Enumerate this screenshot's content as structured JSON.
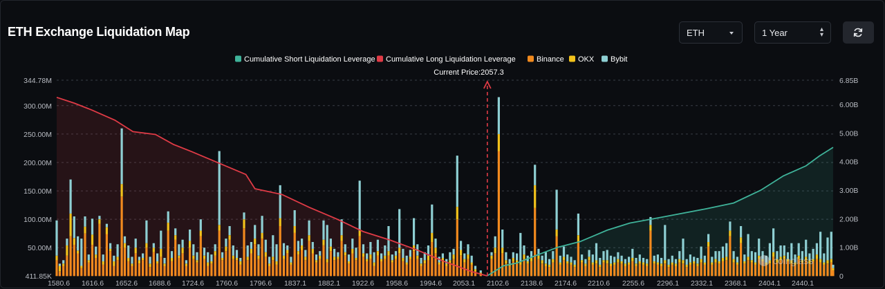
{
  "header": {
    "title": "ETH Exchange Liquidation Map"
  },
  "controls": {
    "symbol": "ETH",
    "range": "1 Year",
    "refresh_icon": "refresh-icon",
    "dropdown_icon": "caret-down-icon",
    "updown_icon": "chevron-updown-icon"
  },
  "colors": {
    "short": "#3fb39a",
    "long": "#e03b46",
    "binance": "#f28a1e",
    "okx": "#f2c21b",
    "bybit": "#8ecfd3",
    "current_price": "#e03b46"
  },
  "watermark": "coinglass",
  "chart_data": {
    "type": "bar",
    "title": "ETH Exchange Liquidation Map",
    "current_price_label": "Current Price:2057.3",
    "current_price": 2057.3,
    "legend": [
      {
        "name": "Cumulative Short Liquidation Leverage",
        "color": "#3fb39a"
      },
      {
        "name": "Cumulative Long Liquidation Leverage",
        "color": "#e03b46"
      },
      {
        "name": "Binance",
        "color": "#f28a1e"
      },
      {
        "name": "OKX",
        "color": "#f2c21b"
      },
      {
        "name": "Bybit",
        "color": "#8ecfd3"
      }
    ],
    "x_ticks": [
      "1580.6",
      "1616.6",
      "1652.6",
      "1688.6",
      "1724.6",
      "1760.6",
      "1796.6",
      "1837.1",
      "1882.1",
      "1922.6",
      "1958.6",
      "1994.6",
      "2053.1",
      "2102.6",
      "2138.6",
      "2174.6",
      "2210.6",
      "2255.6",
      "2296.1",
      "2332.1",
      "2368.1",
      "2404.1",
      "2440.1"
    ],
    "x_range": [
      1580.6,
      2440.1
    ],
    "y_left": {
      "min": 411850,
      "max": 344780000,
      "ticks": [
        "411.85K",
        "50.00M",
        "100.00M",
        "150.00M",
        "200.00M",
        "250.00M",
        "300.00M",
        "344.78M"
      ]
    },
    "y_right": {
      "min": 0,
      "max": 6850000000,
      "ticks": [
        "0",
        "1.00B",
        "2.00B",
        "3.00B",
        "4.00B",
        "5.00B",
        "6.00B",
        "6.85B"
      ]
    },
    "cumulative_long_B": [
      [
        1580.6,
        6.25
      ],
      [
        1600,
        6.05
      ],
      [
        1620,
        5.8
      ],
      [
        1645,
        5.45
      ],
      [
        1665,
        5.05
      ],
      [
        1690,
        4.95
      ],
      [
        1710,
        4.6
      ],
      [
        1730,
        4.35
      ],
      [
        1760,
        3.95
      ],
      [
        1790,
        3.55
      ],
      [
        1800,
        3.05
      ],
      [
        1830,
        2.85
      ],
      [
        1860,
        2.4
      ],
      [
        1890,
        2.0
      ],
      [
        1920,
        1.55
      ],
      [
        1950,
        1.25
      ],
      [
        1980,
        0.9
      ],
      [
        2010,
        0.5
      ],
      [
        2040,
        0.15
      ],
      [
        2057,
        0.0
      ]
    ],
    "cumulative_short_B": [
      [
        2057,
        0.0
      ],
      [
        2075,
        0.35
      ],
      [
        2090,
        0.45
      ],
      [
        2110,
        0.7
      ],
      [
        2135,
        1.0
      ],
      [
        2160,
        1.2
      ],
      [
        2175,
        1.4
      ],
      [
        2190,
        1.6
      ],
      [
        2215,
        1.85
      ],
      [
        2250,
        2.05
      ],
      [
        2300,
        2.35
      ],
      [
        2330,
        2.55
      ],
      [
        2360,
        3.0
      ],
      [
        2385,
        3.5
      ],
      [
        2410,
        3.85
      ],
      [
        2425,
        4.2
      ],
      [
        2440.1,
        4.5
      ]
    ],
    "bars_note": "stacked per price level (USD M): Binance / OKX / Bybit",
    "bars": [
      [
        1580.6,
        28,
        8,
        62
      ],
      [
        1584,
        8,
        10,
        4
      ],
      [
        1588,
        18,
        4,
        6
      ],
      [
        1592,
        36,
        18,
        12
      ],
      [
        1596,
        70,
        40,
        60
      ],
      [
        1600,
        55,
        12,
        38
      ],
      [
        1604,
        40,
        5,
        25
      ],
      [
        1608,
        14,
        4,
        48
      ],
      [
        1612,
        75,
        12,
        18
      ],
      [
        1616,
        24,
        4,
        10
      ],
      [
        1620,
        55,
        18,
        28
      ],
      [
        1624,
        32,
        6,
        14
      ],
      [
        1628,
        92,
        8,
        6
      ],
      [
        1632,
        20,
        6,
        12
      ],
      [
        1636,
        74,
        12,
        6
      ],
      [
        1640,
        44,
        4,
        10
      ],
      [
        1644,
        18,
        8,
        10
      ],
      [
        1648,
        28,
        6,
        22
      ],
      [
        1652.6,
        140,
        22,
        98
      ],
      [
        1656,
        50,
        8,
        12
      ],
      [
        1660,
        26,
        6,
        22
      ],
      [
        1664,
        18,
        4,
        12
      ],
      [
        1668,
        40,
        10,
        16
      ],
      [
        1672,
        22,
        6,
        6
      ],
      [
        1676,
        28,
        4,
        8
      ],
      [
        1680,
        50,
        8,
        40
      ],
      [
        1684,
        16,
        6,
        12
      ],
      [
        1688,
        42,
        8,
        8
      ],
      [
        1692,
        22,
        4,
        14
      ],
      [
        1696,
        34,
        14,
        32
      ],
      [
        1700,
        18,
        4,
        10
      ],
      [
        1704,
        80,
        14,
        20
      ],
      [
        1708,
        26,
        6,
        12
      ],
      [
        1712,
        64,
        8,
        12
      ],
      [
        1716,
        32,
        4,
        20
      ],
      [
        1720,
        40,
        10,
        14
      ],
      [
        1724,
        18,
        4,
        6
      ],
      [
        1728,
        50,
        12,
        20
      ],
      [
        1732,
        30,
        6,
        20
      ],
      [
        1736,
        24,
        4,
        14
      ],
      [
        1740,
        70,
        10,
        20
      ],
      [
        1744,
        30,
        6,
        14
      ],
      [
        1748,
        18,
        6,
        18
      ],
      [
        1752,
        22,
        4,
        12
      ],
      [
        1756,
        36,
        8,
        12
      ],
      [
        1760.6,
        80,
        10,
        130
      ],
      [
        1764,
        28,
        4,
        10
      ],
      [
        1768,
        44,
        8,
        14
      ],
      [
        1772,
        64,
        8,
        16
      ],
      [
        1776,
        30,
        6,
        18
      ],
      [
        1780,
        28,
        4,
        14
      ],
      [
        1784,
        20,
        6,
        6
      ],
      [
        1788,
        84,
        16,
        12
      ],
      [
        1792,
        28,
        6,
        20
      ],
      [
        1796,
        40,
        8,
        12
      ],
      [
        1800,
        56,
        10,
        24
      ],
      [
        1804,
        30,
        6,
        20
      ],
      [
        1808,
        66,
        10,
        30
      ],
      [
        1812,
        34,
        8,
        22
      ],
      [
        1816,
        18,
        4,
        12
      ],
      [
        1820,
        28,
        6,
        38
      ],
      [
        1824,
        20,
        6,
        30
      ],
      [
        1828,
        88,
        14,
        58
      ],
      [
        1832,
        30,
        6,
        22
      ],
      [
        1836,
        40,
        6,
        8
      ],
      [
        1840,
        20,
        4,
        10
      ],
      [
        1844,
        76,
        12,
        28
      ],
      [
        1848,
        38,
        6,
        18
      ],
      [
        1852,
        46,
        8,
        12
      ],
      [
        1856,
        28,
        6,
        12
      ],
      [
        1860,
        62,
        10,
        26
      ],
      [
        1864,
        40,
        8,
        12
      ],
      [
        1868,
        24,
        4,
        10
      ],
      [
        1872,
        30,
        6,
        8
      ],
      [
        1876,
        54,
        10,
        34
      ],
      [
        1880,
        24,
        6,
        60
      ],
      [
        1884,
        44,
        8,
        14
      ],
      [
        1888,
        28,
        6,
        14
      ],
      [
        1892,
        30,
        4,
        8
      ],
      [
        1896,
        62,
        10,
        28
      ],
      [
        1900,
        36,
        6,
        14
      ],
      [
        1904,
        22,
        4,
        12
      ],
      [
        1908,
        40,
        8,
        18
      ],
      [
        1912,
        28,
        4,
        18
      ],
      [
        1916,
        70,
        10,
        88
      ],
      [
        1920,
        34,
        6,
        16
      ],
      [
        1924,
        26,
        4,
        10
      ],
      [
        1928,
        30,
        8,
        22
      ],
      [
        1932,
        18,
        6,
        18
      ],
      [
        1936,
        36,
        8,
        20
      ],
      [
        1940,
        26,
        4,
        10
      ],
      [
        1944,
        30,
        6,
        18
      ],
      [
        1948,
        36,
        8,
        44
      ],
      [
        1952,
        24,
        4,
        10
      ],
      [
        1956,
        30,
        6,
        8
      ],
      [
        1960,
        40,
        10,
        68
      ],
      [
        1964,
        26,
        6,
        16
      ],
      [
        1968,
        20,
        4,
        12
      ],
      [
        1972,
        30,
        4,
        12
      ],
      [
        1976,
        44,
        10,
        48
      ],
      [
        1980,
        30,
        6,
        20
      ],
      [
        1984,
        18,
        4,
        10
      ],
      [
        1988,
        22,
        6,
        14
      ],
      [
        1992,
        28,
        8,
        18
      ],
      [
        1996,
        60,
        16,
        50
      ],
      [
        2000,
        40,
        10,
        16
      ],
      [
        2004,
        20,
        4,
        10
      ],
      [
        2008,
        26,
        6,
        8
      ],
      [
        2012,
        18,
        4,
        8
      ],
      [
        2016,
        22,
        6,
        14
      ],
      [
        2020,
        30,
        8,
        10
      ],
      [
        2024,
        100,
        22,
        90
      ],
      [
        2028,
        36,
        10,
        16
      ],
      [
        2032,
        24,
        6,
        10
      ],
      [
        2036,
        30,
        8,
        18
      ],
      [
        2040,
        20,
        4,
        12
      ],
      [
        2044,
        8,
        4,
        6
      ],
      [
        2050,
        4,
        2,
        4
      ],
      [
        2062,
        30,
        6,
        6
      ],
      [
        2066,
        40,
        10,
        20
      ],
      [
        2070,
        220,
        30,
        65
      ],
      [
        2074,
        40,
        10,
        32
      ],
      [
        2078,
        22,
        6,
        14
      ],
      [
        2082,
        18,
        4,
        8
      ],
      [
        2086,
        26,
        6,
        10
      ],
      [
        2090,
        24,
        4,
        12
      ],
      [
        2094,
        20,
        6,
        50
      ],
      [
        2098,
        30,
        8,
        16
      ],
      [
        2102,
        22,
        4,
        10
      ],
      [
        2106,
        26,
        6,
        12
      ],
      [
        2110,
        120,
        40,
        36
      ],
      [
        2114,
        30,
        6,
        12
      ],
      [
        2118,
        22,
        6,
        8
      ],
      [
        2122,
        18,
        4,
        20
      ],
      [
        2126,
        16,
        4,
        10
      ],
      [
        2130,
        24,
        6,
        14
      ],
      [
        2134,
        70,
        12,
        70
      ],
      [
        2138,
        20,
        4,
        12
      ],
      [
        2142,
        28,
        6,
        18
      ],
      [
        2146,
        22,
        4,
        12
      ],
      [
        2150,
        20,
        4,
        10
      ],
      [
        2154,
        16,
        4,
        8
      ],
      [
        2158,
        60,
        12,
        38
      ],
      [
        2162,
        24,
        4,
        10
      ],
      [
        2166,
        18,
        4,
        8
      ],
      [
        2170,
        28,
        6,
        12
      ],
      [
        2174,
        20,
        4,
        14
      ],
      [
        2178,
        22,
        6,
        30
      ],
      [
        2182,
        16,
        4,
        12
      ],
      [
        2186,
        24,
        4,
        16
      ],
      [
        2190,
        22,
        6,
        18
      ],
      [
        2194,
        18,
        4,
        14
      ],
      [
        2198,
        20,
        4,
        10
      ],
      [
        2202,
        24,
        6,
        12
      ],
      [
        2206,
        22,
        4,
        10
      ],
      [
        2210,
        18,
        4,
        8
      ],
      [
        2214,
        20,
        4,
        10
      ],
      [
        2218,
        26,
        6,
        16
      ],
      [
        2222,
        18,
        4,
        10
      ],
      [
        2226,
        22,
        4,
        12
      ],
      [
        2230,
        20,
        4,
        8
      ],
      [
        2234,
        18,
        4,
        8
      ],
      [
        2238,
        80,
        10,
        14
      ],
      [
        2242,
        22,
        4,
        10
      ],
      [
        2246,
        20,
        4,
        14
      ],
      [
        2250,
        18,
        4,
        10
      ],
      [
        2254,
        22,
        6,
        62
      ],
      [
        2258,
        16,
        4,
        10
      ],
      [
        2262,
        20,
        4,
        12
      ],
      [
        2266,
        18,
        4,
        8
      ],
      [
        2270,
        24,
        6,
        14
      ],
      [
        2274,
        22,
        6,
        38
      ],
      [
        2278,
        16,
        4,
        10
      ],
      [
        2282,
        20,
        4,
        14
      ],
      [
        2286,
        22,
        4,
        8
      ],
      [
        2290,
        18,
        4,
        10
      ],
      [
        2294,
        24,
        6,
        22
      ],
      [
        2298,
        20,
        4,
        12
      ],
      [
        2302,
        52,
        8,
        14
      ],
      [
        2306,
        20,
        4,
        10
      ],
      [
        2310,
        24,
        6,
        14
      ],
      [
        2314,
        22,
        4,
        18
      ],
      [
        2318,
        26,
        6,
        20
      ],
      [
        2322,
        28,
        6,
        24
      ],
      [
        2326,
        70,
        10,
        16
      ],
      [
        2330,
        24,
        6,
        14
      ],
      [
        2334,
        20,
        4,
        10
      ],
      [
        2338,
        58,
        10,
        20
      ],
      [
        2342,
        22,
        4,
        12
      ],
      [
        2346,
        28,
        6,
        40
      ],
      [
        2350,
        24,
        4,
        16
      ],
      [
        2354,
        20,
        4,
        18
      ],
      [
        2358,
        30,
        6,
        30
      ],
      [
        2362,
        26,
        4,
        14
      ],
      [
        2366,
        20,
        4,
        12
      ],
      [
        2370,
        22,
        6,
        30
      ],
      [
        2374,
        34,
        8,
        42
      ],
      [
        2378,
        24,
        6,
        14
      ],
      [
        2382,
        28,
        6,
        20
      ],
      [
        2386,
        30,
        6,
        18
      ],
      [
        2390,
        26,
        4,
        12
      ],
      [
        2394,
        22,
        6,
        30
      ],
      [
        2398,
        20,
        4,
        14
      ],
      [
        2402,
        30,
        6,
        22
      ],
      [
        2406,
        24,
        4,
        16
      ],
      [
        2410,
        28,
        6,
        30
      ],
      [
        2414,
        22,
        6,
        12
      ],
      [
        2418,
        26,
        4,
        18
      ],
      [
        2422,
        30,
        8,
        20
      ],
      [
        2426,
        24,
        6,
        48
      ],
      [
        2430,
        20,
        4,
        16
      ],
      [
        2434,
        22,
        6,
        40
      ],
      [
        2438,
        24,
        6,
        48
      ],
      [
        2440.1,
        10,
        4,
        6
      ]
    ]
  }
}
